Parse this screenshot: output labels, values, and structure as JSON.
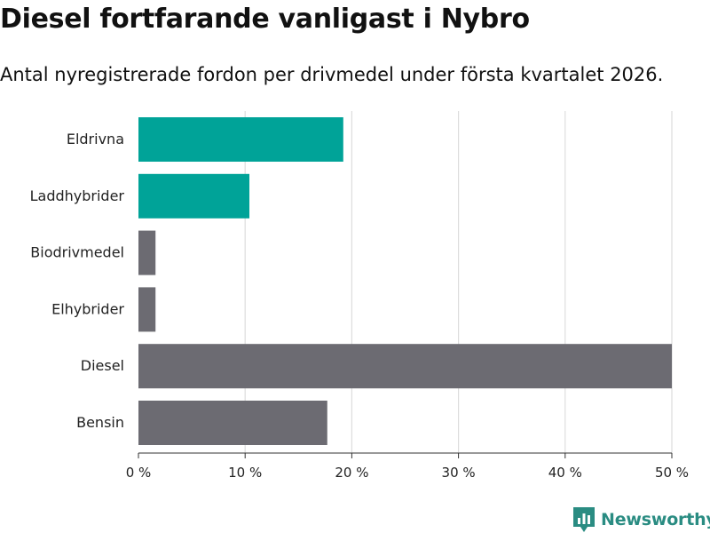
{
  "title": "Diesel fortfarande vanligast i Nybro",
  "subtitle": "Antal nyregistrerade fordon per drivmedel under första kvartalet 2026.",
  "brand": {
    "name": "Newsworthy",
    "color": "#2a8c82"
  },
  "chart_data": {
    "type": "bar",
    "orientation": "horizontal",
    "categories": [
      "Eldrivna",
      "Laddhybrider",
      "Biodrivmedel",
      "Elhybrider",
      "Diesel",
      "Bensin"
    ],
    "values": [
      19.2,
      10.4,
      1.6,
      1.6,
      50.0,
      17.7
    ],
    "colors": [
      "#00a398",
      "#00a398",
      "#6c6b72",
      "#6c6b72",
      "#6c6b72",
      "#6c6b72"
    ],
    "xlim": [
      0,
      50
    ],
    "xticks": [
      0,
      10,
      20,
      30,
      40,
      50
    ],
    "xtick_labels": [
      "0 %",
      "10 %",
      "20 %",
      "30 %",
      "40 %",
      "50 %"
    ],
    "grid": true,
    "xlabel": "",
    "ylabel": ""
  }
}
